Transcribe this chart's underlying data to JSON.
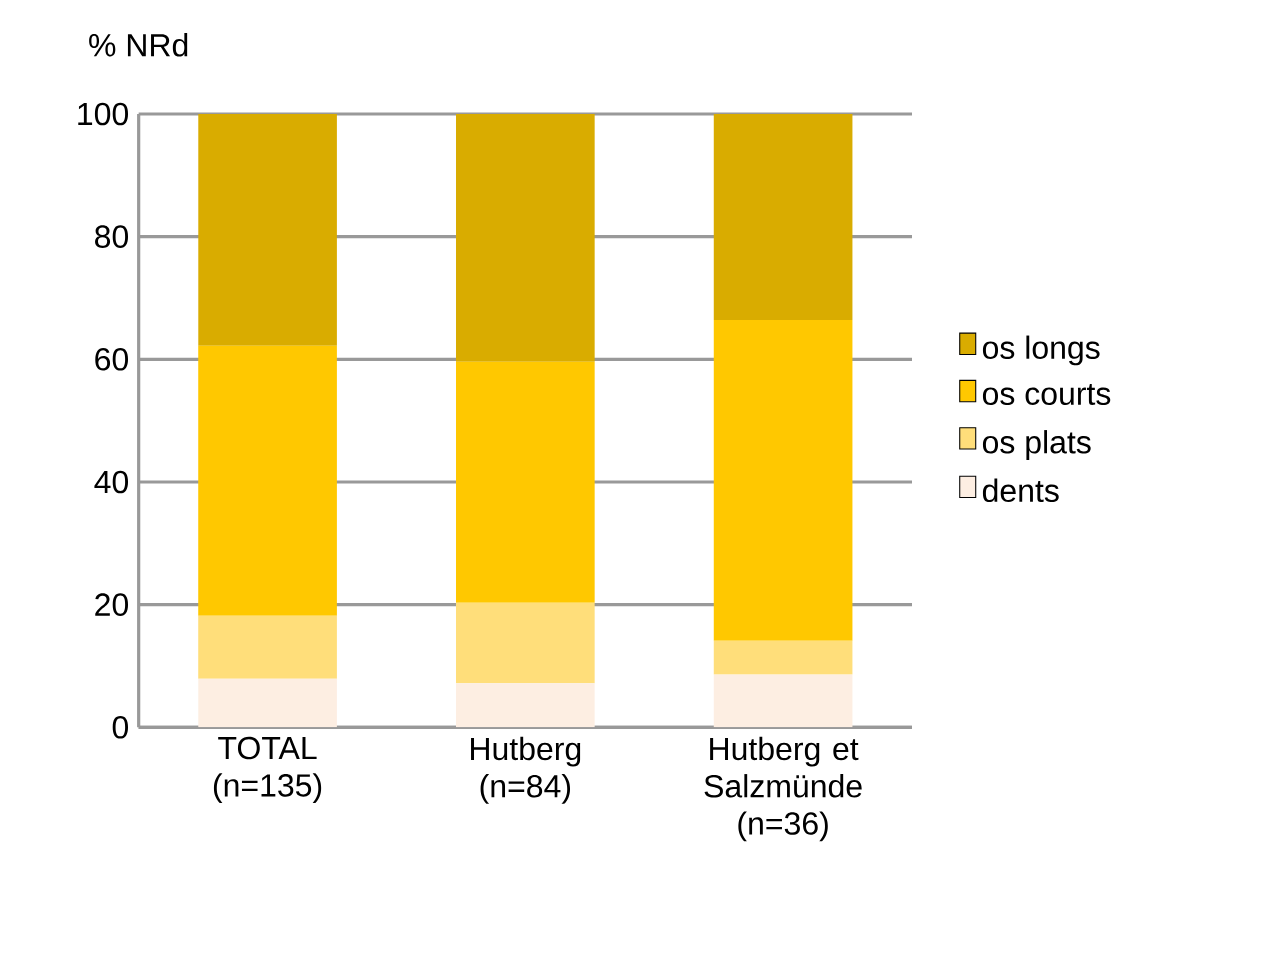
{
  "chart_data": {
    "type": "bar",
    "stacked": true,
    "ylabel": "% NRd",
    "categories": [
      "TOTAL (n=135)",
      "Hutberg (n=84)",
      "Hutberg et Salzmünde (n=36)"
    ],
    "series": [
      {
        "name": "dents",
        "color": "#fdeee2",
        "values": [
          7.9,
          7.2,
          8.6
        ]
      },
      {
        "name": "os plats",
        "color": "#ffde7a",
        "values": [
          10.3,
          13.1,
          5.5
        ]
      },
      {
        "name": "os courts",
        "color": "#ffc800",
        "values": [
          44.0,
          39.3,
          52.3
        ]
      },
      {
        "name": "os longs",
        "color": "#d9ac00",
        "values": [
          37.8,
          40.4,
          33.6
        ]
      }
    ],
    "ylim": [
      0,
      100
    ],
    "yticks": [
      0,
      20,
      40,
      60,
      80,
      100
    ],
    "grid": "y",
    "legend": "right"
  }
}
